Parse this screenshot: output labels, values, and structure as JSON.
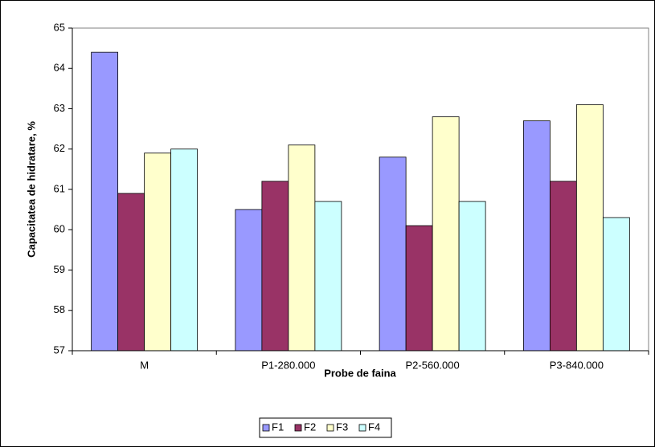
{
  "chart_data": {
    "type": "bar",
    "x_label": "Probe de faina",
    "y_label": "Capacitatea de hidratare, %",
    "categories": [
      "M",
      "P1-280.000",
      "P2-560.000",
      "P3-840.000"
    ],
    "series": [
      {
        "name": "F1",
        "color": "#9999ff",
        "values": [
          64.4,
          60.5,
          61.8,
          62.7
        ]
      },
      {
        "name": "F2",
        "color": "#993366",
        "values": [
          60.9,
          61.2,
          60.1,
          61.2
        ]
      },
      {
        "name": "F3",
        "color": "#ffffcc",
        "values": [
          61.9,
          62.1,
          62.8,
          63.1
        ]
      },
      {
        "name": "F4",
        "color": "#ccffff",
        "values": [
          62.0,
          60.7,
          60.7,
          60.3
        ]
      }
    ],
    "ylim": [
      57,
      65
    ],
    "yticks": [
      57,
      58,
      59,
      60,
      61,
      62,
      63,
      64,
      65
    ],
    "grid": false,
    "legend": "bottom"
  }
}
